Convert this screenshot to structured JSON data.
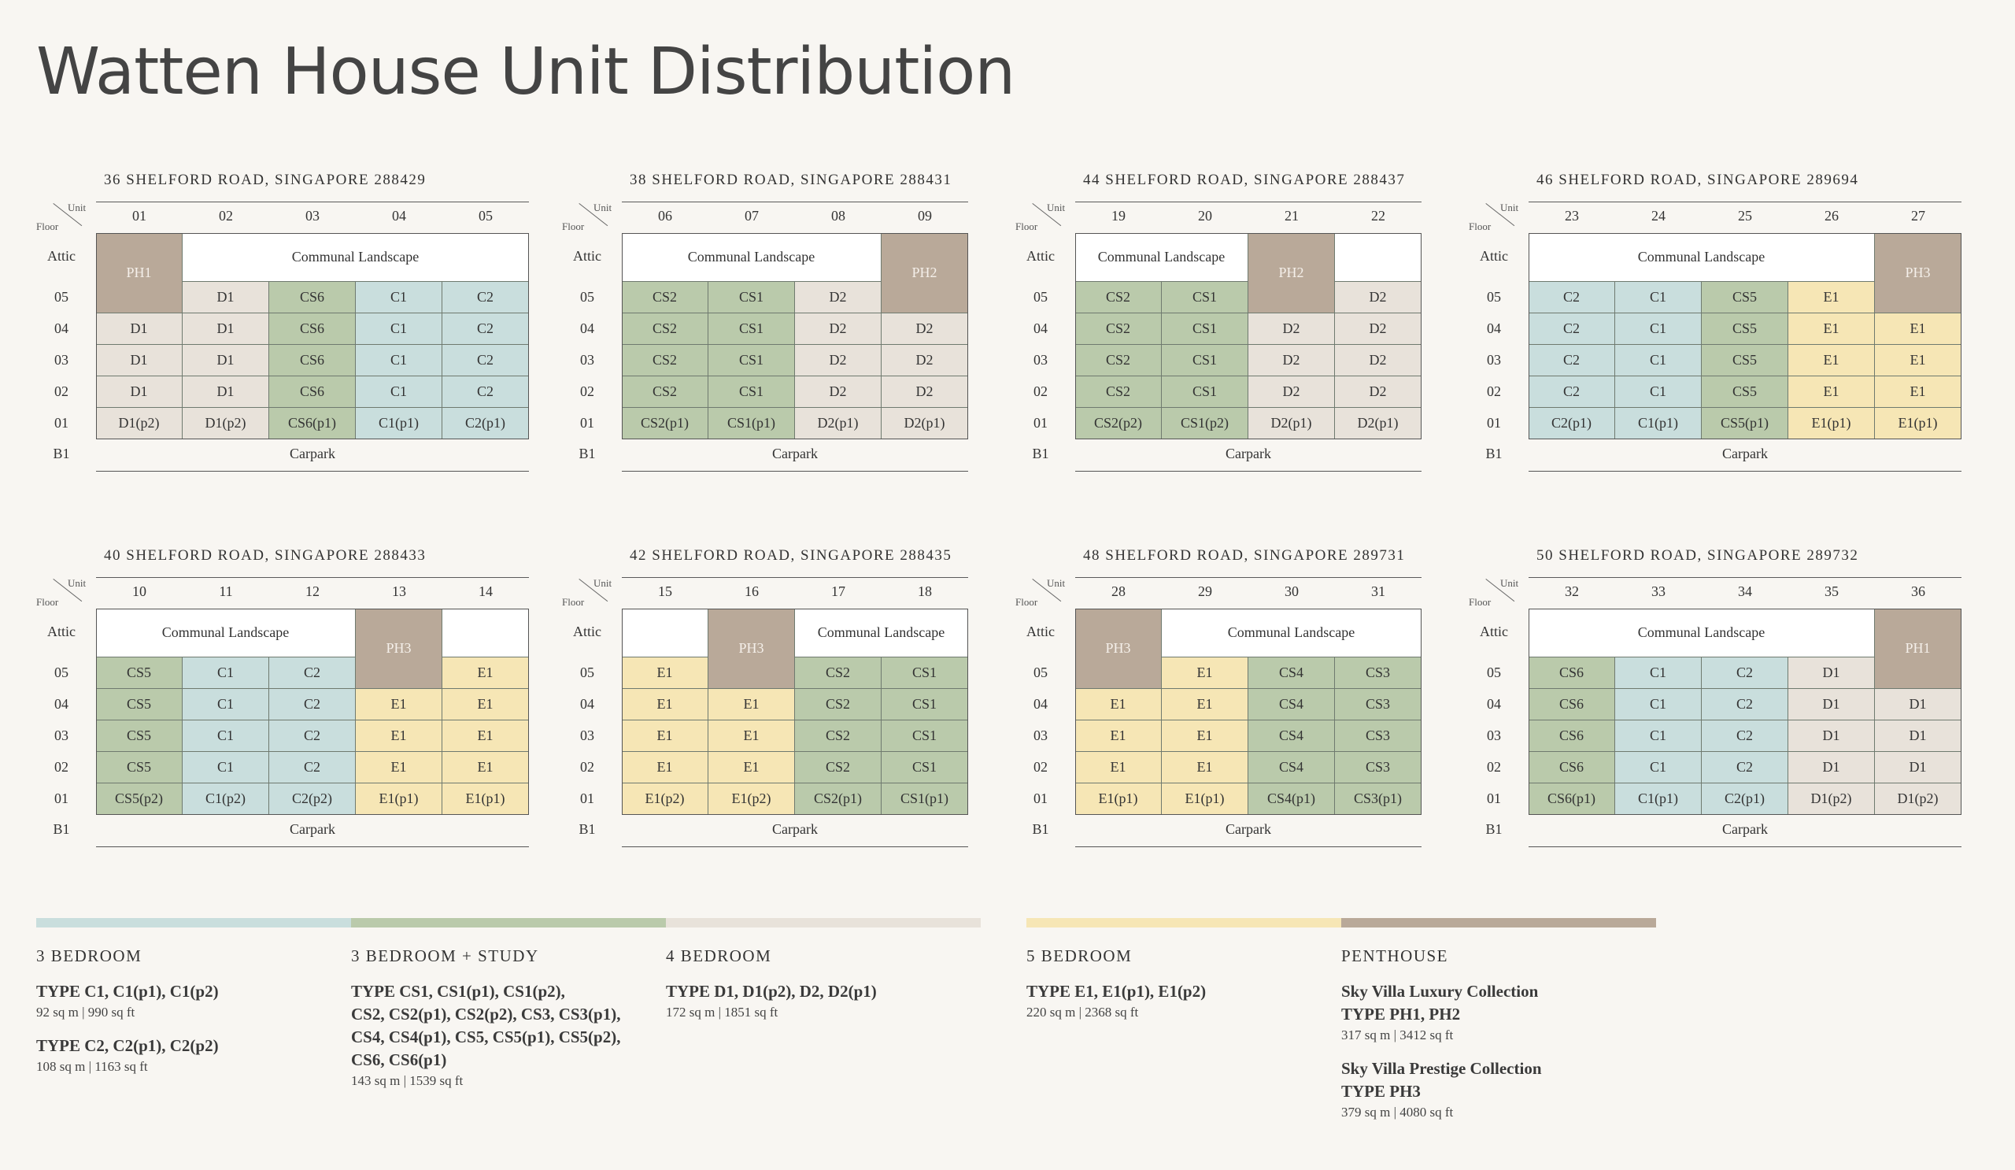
{
  "title": "Watten House Unit Distribution",
  "colors": {
    "C": "#c9dedd",
    "CS": "#bacaab",
    "D": "#e8e2da",
    "E": "#f6e6b5",
    "PH": "#b9a999",
    "blank": "#ffffff"
  },
  "labels": {
    "unit": "Unit",
    "floor": "Floor",
    "carpark": "Carpark",
    "communal": "Communal Landscape"
  },
  "row_labels": [
    "Attic",
    "05",
    "04",
    "03",
    "02",
    "01",
    "B1"
  ],
  "blocks": [
    {
      "title": "36 SHELFORD ROAD, SINGAPORE 288429",
      "units": [
        "01",
        "02",
        "03",
        "04",
        "05"
      ],
      "spans": [
        {
          "label": "PH1",
          "color": "PH",
          "c": 0,
          "r": 0,
          "cs": 1,
          "rs": 2
        },
        {
          "label": "Communal Landscape",
          "color": "blank",
          "c": 1,
          "r": 0,
          "cs": 4,
          "rs": 1
        }
      ],
      "rows": [
        [
          null,
          "D1",
          "CS6",
          "C1",
          "C2"
        ],
        [
          "D1",
          "D1",
          "CS6",
          "C1",
          "C2"
        ],
        [
          "D1",
          "D1",
          "CS6",
          "C1",
          "C2"
        ],
        [
          "D1",
          "D1",
          "CS6",
          "C1",
          "C2"
        ],
        [
          "D1(p2)",
          "D1(p2)",
          "CS6(p1)",
          "C1(p1)",
          "C2(p1)"
        ]
      ]
    },
    {
      "title": "38 SHELFORD ROAD, SINGAPORE 288431",
      "units": [
        "06",
        "07",
        "08",
        "09"
      ],
      "spans": [
        {
          "label": "Communal Landscape",
          "color": "blank",
          "c": 0,
          "r": 0,
          "cs": 3,
          "rs": 1
        },
        {
          "label": "PH2",
          "color": "PH",
          "c": 3,
          "r": 0,
          "cs": 1,
          "rs": 2
        }
      ],
      "rows": [
        [
          "CS2",
          "CS1",
          "D2",
          null
        ],
        [
          "CS2",
          "CS1",
          "D2",
          "D2"
        ],
        [
          "CS2",
          "CS1",
          "D2",
          "D2"
        ],
        [
          "CS2",
          "CS1",
          "D2",
          "D2"
        ],
        [
          "CS2(p1)",
          "CS1(p1)",
          "D2(p1)",
          "D2(p1)"
        ]
      ]
    },
    {
      "title": "44 SHELFORD ROAD, SINGAPORE 288437",
      "units": [
        "19",
        "20",
        "21",
        "22"
      ],
      "spans": [
        {
          "label": "Communal Landscape",
          "color": "blank",
          "c": 0,
          "r": 0,
          "cs": 2,
          "rs": 1
        },
        {
          "label": "PH2",
          "color": "PH",
          "c": 2,
          "r": 0,
          "cs": 1,
          "rs": 2
        },
        {
          "label": "",
          "color": "blank",
          "c": 3,
          "r": 0,
          "cs": 1,
          "rs": 1
        }
      ],
      "rows": [
        [
          "CS2",
          "CS1",
          null,
          "D2"
        ],
        [
          "CS2",
          "CS1",
          "D2",
          "D2"
        ],
        [
          "CS2",
          "CS1",
          "D2",
          "D2"
        ],
        [
          "CS2",
          "CS1",
          "D2",
          "D2"
        ],
        [
          "CS2(p2)",
          "CS1(p2)",
          "D2(p1)",
          "D2(p1)"
        ]
      ]
    },
    {
      "title": "46 SHELFORD ROAD, SINGAPORE 289694",
      "units": [
        "23",
        "24",
        "25",
        "26",
        "27"
      ],
      "spans": [
        {
          "label": "Communal Landscape",
          "color": "blank",
          "c": 0,
          "r": 0,
          "cs": 4,
          "rs": 1
        },
        {
          "label": "PH3",
          "color": "PH",
          "c": 4,
          "r": 0,
          "cs": 1,
          "rs": 2
        }
      ],
      "rows": [
        [
          "C2",
          "C1",
          "CS5",
          "E1",
          null
        ],
        [
          "C2",
          "C1",
          "CS5",
          "E1",
          "E1"
        ],
        [
          "C2",
          "C1",
          "CS5",
          "E1",
          "E1"
        ],
        [
          "C2",
          "C1",
          "CS5",
          "E1",
          "E1"
        ],
        [
          "C2(p1)",
          "C1(p1)",
          "CS5(p1)",
          "E1(p1)",
          "E1(p1)"
        ]
      ]
    },
    {
      "title": "40 SHELFORD ROAD, SINGAPORE 288433",
      "units": [
        "10",
        "11",
        "12",
        "13",
        "14"
      ],
      "spans": [
        {
          "label": "Communal Landscape",
          "color": "blank",
          "c": 0,
          "r": 0,
          "cs": 3,
          "rs": 1
        },
        {
          "label": "PH3",
          "color": "PH",
          "c": 3,
          "r": 0,
          "cs": 1,
          "rs": 2
        },
        {
          "label": "",
          "color": "blank",
          "c": 4,
          "r": 0,
          "cs": 1,
          "rs": 1
        }
      ],
      "rows": [
        [
          "CS5",
          "C1",
          "C2",
          null,
          "E1"
        ],
        [
          "CS5",
          "C1",
          "C2",
          "E1",
          "E1"
        ],
        [
          "CS5",
          "C1",
          "C2",
          "E1",
          "E1"
        ],
        [
          "CS5",
          "C1",
          "C2",
          "E1",
          "E1"
        ],
        [
          "CS5(p2)",
          "C1(p2)",
          "C2(p2)",
          "E1(p1)",
          "E1(p1)"
        ]
      ]
    },
    {
      "title": "42 SHELFORD ROAD, SINGAPORE 288435",
      "units": [
        "15",
        "16",
        "17",
        "18"
      ],
      "spans": [
        {
          "label": "",
          "color": "blank",
          "c": 0,
          "r": 0,
          "cs": 1,
          "rs": 1
        },
        {
          "label": "PH3",
          "color": "PH",
          "c": 1,
          "r": 0,
          "cs": 1,
          "rs": 2
        },
        {
          "label": "Communal Landscape",
          "color": "blank",
          "c": 2,
          "r": 0,
          "cs": 2,
          "rs": 1
        }
      ],
      "rows": [
        [
          "E1",
          null,
          "CS2",
          "CS1"
        ],
        [
          "E1",
          "E1",
          "CS2",
          "CS1"
        ],
        [
          "E1",
          "E1",
          "CS2",
          "CS1"
        ],
        [
          "E1",
          "E1",
          "CS2",
          "CS1"
        ],
        [
          "E1(p2)",
          "E1(p2)",
          "CS2(p1)",
          "CS1(p1)"
        ]
      ]
    },
    {
      "title": "48 SHELFORD ROAD, SINGAPORE 289731",
      "units": [
        "28",
        "29",
        "30",
        "31"
      ],
      "spans": [
        {
          "label": "PH3",
          "color": "PH",
          "c": 0,
          "r": 0,
          "cs": 1,
          "rs": 2
        },
        {
          "label": "Communal Landscape",
          "color": "blank",
          "c": 1,
          "r": 0,
          "cs": 3,
          "rs": 1
        }
      ],
      "rows": [
        [
          null,
          "E1",
          "CS4",
          "CS3"
        ],
        [
          "E1",
          "E1",
          "CS4",
          "CS3"
        ],
        [
          "E1",
          "E1",
          "CS4",
          "CS3"
        ],
        [
          "E1",
          "E1",
          "CS4",
          "CS3"
        ],
        [
          "E1(p1)",
          "E1(p1)",
          "CS4(p1)",
          "CS3(p1)"
        ]
      ]
    },
    {
      "title": "50 SHELFORD ROAD, SINGAPORE 289732",
      "units": [
        "32",
        "33",
        "34",
        "35",
        "36"
      ],
      "spans": [
        {
          "label": "Communal Landscape",
          "color": "blank",
          "c": 0,
          "r": 0,
          "cs": 4,
          "rs": 1
        },
        {
          "label": "PH1",
          "color": "PH",
          "c": 4,
          "r": 0,
          "cs": 1,
          "rs": 2
        }
      ],
      "rows": [
        [
          "CS6",
          "C1",
          "C2",
          "D1",
          null
        ],
        [
          "CS6",
          "C1",
          "C2",
          "D1",
          "D1"
        ],
        [
          "CS6",
          "C1",
          "C2",
          "D1",
          "D1"
        ],
        [
          "CS6",
          "C1",
          "C2",
          "D1",
          "D1"
        ],
        [
          "CS6(p1)",
          "C1(p1)",
          "C2(p1)",
          "D1(p2)",
          "D1(p2)"
        ]
      ]
    }
  ],
  "legend": [
    {
      "color": "C",
      "title": "3 BEDROOM",
      "types": [
        {
          "label": "TYPE C1, C1(p1), C1(p2)",
          "area": "92 sq m | 990 sq ft"
        },
        {
          "label": "TYPE C2, C2(p1), C2(p2)",
          "area": "108 sq m | 1163 sq ft"
        }
      ]
    },
    {
      "color": "CS",
      "title": "3 BEDROOM + STUDY",
      "types": [
        {
          "lines": [
            "TYPE CS1, CS1(p1), CS1(p2),",
            "CS2, CS2(p1), CS2(p2), CS3, CS3(p1),",
            "CS4, CS4(p1), CS5, CS5(p1), CS5(p2),",
            "CS6, CS6(p1)"
          ],
          "area": "143 sq m | 1539 sq ft"
        }
      ]
    },
    {
      "color": "D",
      "title": "4 BEDROOM",
      "types": [
        {
          "label": "TYPE D1, D1(p2), D2, D2(p1)",
          "area": "172 sq m | 1851 sq ft"
        }
      ]
    },
    {
      "color": "E",
      "title": "5 BEDROOM",
      "types": [
        {
          "label": "TYPE E1, E1(p1), E1(p2)",
          "area": "220 sq m | 2368 sq ft"
        }
      ]
    },
    {
      "color": "PH",
      "title": "PENTHOUSE",
      "types": [
        {
          "lines": [
            "Sky Villa Luxury Collection",
            "TYPE PH1, PH2"
          ],
          "area": "317 sq m | 3412 sq ft"
        },
        {
          "lines": [
            "Sky Villa Prestige Collection",
            "TYPE PH3"
          ],
          "area": "379 sq m | 4080 sq ft"
        }
      ]
    }
  ]
}
